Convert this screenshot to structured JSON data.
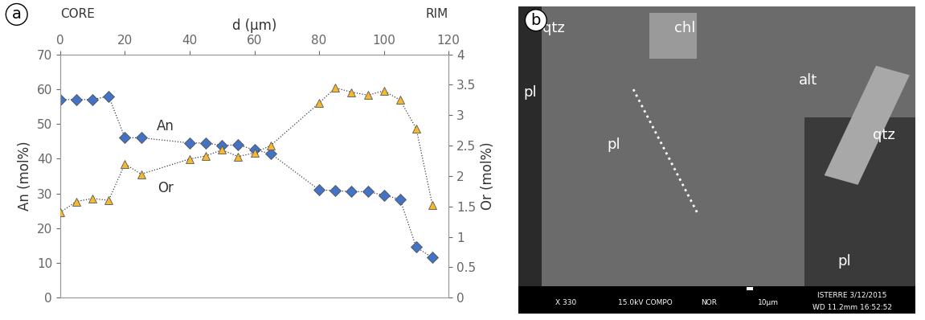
{
  "chart_data": {
    "type": "line",
    "panel": "a",
    "x_label": "d (μm)",
    "left_note": "CORE",
    "right_note": "RIM",
    "y_label": "An (mol%)",
    "y2_label": "Or (mol%)",
    "x": [
      0,
      5,
      10,
      15,
      20,
      25,
      40,
      45,
      50,
      55,
      60,
      65,
      80,
      85,
      90,
      95,
      100,
      105,
      110,
      115
    ],
    "series": [
      {
        "name": "An",
        "color": "#4472c4",
        "marker": "diamond",
        "line_style": "dotted",
        "values": [
          57,
          57,
          57,
          58,
          46,
          46,
          44.5,
          44.5,
          43.8,
          44,
          42.5,
          41.5,
          31,
          30.8,
          30.5,
          30.5,
          29.5,
          28.3,
          14.5,
          11.5
        ]
      },
      {
        "name": "Or",
        "color": "#f5b82e",
        "marker": "triangle",
        "line_style": "dotted",
        "axis": "y2",
        "values": [
          1.4,
          1.58,
          1.63,
          1.6,
          2.2,
          2.03,
          2.28,
          2.33,
          2.43,
          2.32,
          2.38,
          2.5,
          3.2,
          3.45,
          3.38,
          3.33,
          3.4,
          3.25,
          2.78,
          1.52
        ]
      }
    ],
    "xlim": [
      0,
      120
    ],
    "xticks": [
      0,
      20,
      40,
      60,
      80,
      100,
      120
    ],
    "ylim": [
      0,
      70
    ],
    "yticks": [
      0,
      10,
      20,
      30,
      40,
      50,
      60,
      70
    ],
    "y2lim": [
      0,
      4
    ],
    "y2ticks": [
      0,
      0.5,
      1,
      1.5,
      2,
      2.5,
      3,
      3.5,
      4
    ]
  },
  "image_panel": {
    "panel": "b",
    "labels": [
      "qtz",
      "chl",
      "pl",
      "alt",
      "qtz",
      "pl",
      "pl"
    ],
    "info_bar": [
      "X 330",
      "15.0kV COMPO",
      "NOR",
      "10μm",
      "ISTERRE 3/12/2015",
      "WD 11.2mm 16:52:52"
    ]
  }
}
